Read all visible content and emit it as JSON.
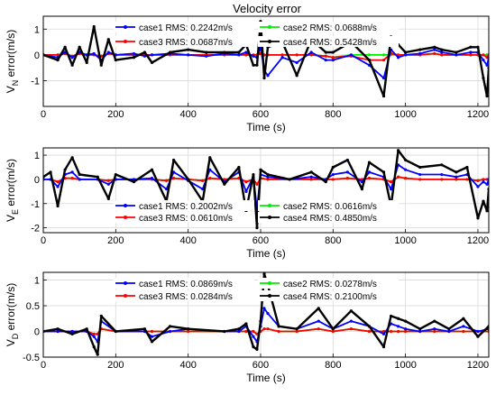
{
  "figure": {
    "title": "Velocity error"
  },
  "colors": {
    "case1": "#0000ff",
    "case2": "#00ee00",
    "case3": "#ff0000",
    "case4": "#000000",
    "grid": "#d9d9d9"
  },
  "chart_data": [
    {
      "type": "line",
      "title": "Velocity error",
      "xlabel": "Time (s)",
      "ylabel": "V_N error(m/s)",
      "ylabel_main": "V",
      "ylabel_sub": "N",
      "ylabel_rest": " error(m/s)",
      "xlim": [
        0,
        1230
      ],
      "ylim": [
        -2,
        1.5
      ],
      "xticks": [
        "0",
        "200",
        "400",
        "600",
        "800",
        "1000",
        "1200"
      ],
      "yticks": [
        "-1",
        "0",
        "1"
      ],
      "ytick_values": [
        -1,
        0,
        1
      ],
      "grid": true,
      "legend": "top, two columns",
      "legend_entries": [
        "case1 RMS: 0.2242m/s",
        "case2 RMS: 0.0688m/s",
        "case3 RMS: 0.0687m/s",
        "case4 RMS: 0.5428m/s"
      ],
      "x": [
        0,
        40,
        60,
        80,
        100,
        120,
        140,
        160,
        180,
        200,
        250,
        280,
        300,
        350,
        400,
        450,
        500,
        540,
        560,
        580,
        590,
        600,
        610,
        620,
        660,
        700,
        740,
        780,
        800,
        850,
        900,
        940,
        960,
        980,
        1000,
        1040,
        1080,
        1100,
        1140,
        1180,
        1200,
        1215,
        1225,
        1230
      ],
      "series": [
        {
          "name": "case1",
          "values": [
            0,
            -0.1,
            0.1,
            -0.1,
            0.1,
            0,
            0.05,
            -0.2,
            0.1,
            0,
            0.05,
            -0.05,
            0,
            0.05,
            0,
            -0.05,
            0.05,
            0,
            0.1,
            -0.05,
            -0.1,
            0.3,
            -0.6,
            -0.8,
            -0.1,
            -0.3,
            0.1,
            -0.2,
            -0.2,
            0,
            -0.4,
            -0.9,
            0.2,
            -0.1,
            0,
            0.05,
            0.2,
            0.1,
            0,
            0.1,
            0.1,
            -0.2,
            -0.4,
            -0.1
          ]
        },
        {
          "name": "case2",
          "values": [
            0,
            0,
            0.05,
            -0.05,
            0.05,
            0,
            0,
            -0.05,
            0.05,
            0,
            0,
            0,
            0,
            0,
            0,
            0,
            0,
            0,
            0,
            0,
            0,
            0.05,
            0,
            0,
            0,
            0,
            0,
            -0.05,
            -0.1,
            0,
            0,
            0,
            0,
            0,
            0,
            0,
            0.05,
            0,
            0,
            0,
            0,
            0,
            0,
            0
          ]
        },
        {
          "name": "case3",
          "values": [
            0,
            0,
            0.05,
            -0.05,
            0.05,
            0,
            0,
            -0.05,
            0.05,
            0,
            0,
            0,
            0,
            0,
            0,
            0,
            0,
            0,
            0,
            0,
            0,
            0.05,
            0,
            0,
            0,
            0,
            0,
            -0.05,
            -0.1,
            -0.05,
            -0.2,
            -0.2,
            0.05,
            0,
            0,
            0,
            0.05,
            0,
            0,
            0,
            0,
            0,
            -0.1,
            0
          ]
        },
        {
          "name": "case4",
          "values": [
            0,
            -0.2,
            0.3,
            -0.4,
            0.3,
            -0.3,
            1.1,
            -0.4,
            0.6,
            -0.2,
            -0.1,
            0.1,
            -0.3,
            0.1,
            0.2,
            0.1,
            0.1,
            0.1,
            0.4,
            -0.4,
            -0.4,
            1.3,
            -0.9,
            0.3,
            0.5,
            -0.8,
            0.6,
            0.1,
            0.1,
            0.5,
            -0.2,
            -1.6,
            0.7,
            0.4,
            0.1,
            0.2,
            0.3,
            0.2,
            0.1,
            0.3,
            0.3,
            -0.9,
            -1.6,
            -0.5
          ]
        }
      ]
    },
    {
      "type": "line",
      "xlabel": "Time (s)",
      "ylabel": "V_E error(m/s)",
      "ylabel_main": "V",
      "ylabel_sub": "E",
      "ylabel_rest": " error(m/s)",
      "xlim": [
        0,
        1230
      ],
      "ylim": [
        -2.2,
        1.3
      ],
      "xticks": [
        "0",
        "200",
        "400",
        "600",
        "800",
        "1000",
        "1200"
      ],
      "yticks": [
        "-2",
        "-1",
        "0",
        "1"
      ],
      "ytick_values": [
        -2,
        -1,
        0,
        1
      ],
      "grid": true,
      "legend": "bottom, two columns",
      "legend_entries": [
        "case1 RMS: 0.2002m/s",
        "case2 RMS: 0.0616m/s",
        "case3 RMS: 0.0610m/s",
        "case4 RMS: 0.4850m/s"
      ],
      "x": [
        0,
        20,
        40,
        60,
        80,
        100,
        150,
        180,
        200,
        250,
        300,
        340,
        360,
        400,
        440,
        460,
        500,
        540,
        560,
        580,
        590,
        600,
        620,
        680,
        740,
        780,
        800,
        840,
        880,
        900,
        940,
        960,
        980,
        1000,
        1040,
        1100,
        1140,
        1170,
        1200,
        1215,
        1225,
        1230
      ],
      "series": [
        {
          "name": "case1",
          "values": [
            0,
            0,
            -0.3,
            0.2,
            0.3,
            0,
            0,
            -0.2,
            0,
            0,
            0.05,
            -0.4,
            0.3,
            -0.05,
            -0.4,
            0.4,
            -0.1,
            0.3,
            -0.5,
            0.1,
            -1.2,
            0.2,
            0.1,
            0,
            0.1,
            0,
            0.2,
            0.3,
            -0.1,
            0.3,
            0.1,
            -0.4,
            0.6,
            0.4,
            0.2,
            0.2,
            0.1,
            0.2,
            -0.3,
            -0.1,
            -0.2,
            0
          ]
        },
        {
          "name": "case2",
          "values": [
            0,
            0,
            -0.1,
            0.05,
            0.05,
            0,
            0,
            -0.05,
            0,
            0,
            0,
            -0.05,
            0.05,
            0,
            -0.05,
            0.05,
            0,
            0.05,
            -0.1,
            0,
            -0.2,
            0.05,
            0,
            0,
            0,
            0,
            0,
            0.05,
            0,
            0.05,
            0,
            -0.1,
            0.1,
            0.05,
            0,
            0,
            0,
            0,
            -0.05,
            0,
            0,
            0
          ]
        },
        {
          "name": "case3",
          "values": [
            0,
            0,
            -0.1,
            0.05,
            0.05,
            0,
            0,
            -0.05,
            0,
            0,
            0,
            -0.05,
            0.05,
            0,
            -0.05,
            0.05,
            0,
            0.05,
            -0.1,
            0,
            -0.2,
            0.05,
            0,
            0,
            0,
            0,
            0,
            0.05,
            0,
            0.05,
            0,
            -0.1,
            0.1,
            0.05,
            0,
            0,
            0,
            0,
            -0.05,
            0,
            0,
            0
          ]
        },
        {
          "name": "case4",
          "values": [
            0.1,
            0.3,
            -1.1,
            0.4,
            0.9,
            0.2,
            0.1,
            -0.8,
            0.2,
            -0.1,
            0.4,
            -0.9,
            0.8,
            0,
            -0.9,
            0.9,
            -0.2,
            0.5,
            -1.3,
            0.2,
            -2.0,
            0.4,
            0.2,
            0,
            0.3,
            -0.1,
            0.5,
            0.8,
            -0.4,
            0.7,
            0.3,
            -1.1,
            1.2,
            0.8,
            0.5,
            0.6,
            0.3,
            0.5,
            -1.6,
            -0.9,
            -1.3,
            -0.4
          ]
        }
      ]
    },
    {
      "type": "line",
      "xlabel": "Time (s)",
      "ylabel": "V_D error(m/s)",
      "ylabel_main": "V",
      "ylabel_sub": "D",
      "ylabel_rest": " error(m/s)",
      "xlim": [
        0,
        1230
      ],
      "ylim": [
        -0.5,
        1.15
      ],
      "xticks": [
        "0",
        "200",
        "400",
        "600",
        "800",
        "1000",
        "1200"
      ],
      "yticks": [
        "-0.5",
        "0",
        "0.5",
        "1"
      ],
      "ytick_values": [
        -0.5,
        0,
        0.5,
        1
      ],
      "grid": true,
      "legend": "top, two columns",
      "legend_entries": [
        "case1 RMS: 0.0869m/s",
        "case2 RMS: 0.0278m/s",
        "case3 RMS: 0.0284m/s",
        "case4 RMS: 0.2100m/s"
      ],
      "x": [
        0,
        40,
        80,
        120,
        140,
        150,
        160,
        200,
        280,
        300,
        350,
        400,
        500,
        540,
        560,
        580,
        590,
        600,
        610,
        620,
        650,
        700,
        760,
        800,
        850,
        900,
        940,
        960,
        980,
        1000,
        1040,
        1080,
        1120,
        1160,
        1200,
        1230
      ],
      "series": [
        {
          "name": "case1",
          "values": [
            0,
            0,
            0,
            0,
            -0.1,
            -0.2,
            0.2,
            0,
            0,
            -0.1,
            0,
            0.05,
            0,
            0,
            0.1,
            -0.1,
            -0.2,
            0.1,
            0.45,
            0.35,
            0.1,
            0.05,
            0.2,
            0.05,
            0.2,
            0.1,
            -0.05,
            0.15,
            0.1,
            0.05,
            0,
            0.05,
            0,
            0.1,
            0,
            0.05
          ]
        },
        {
          "name": "case2",
          "values": [
            0,
            0,
            0,
            0,
            -0.05,
            -0.05,
            0.05,
            0,
            0,
            0,
            0,
            0,
            0,
            0,
            0,
            0,
            -0.05,
            0,
            0.05,
            0.05,
            0,
            0,
            0.05,
            0,
            0.05,
            0,
            0,
            0,
            0,
            0,
            0,
            0,
            0,
            0,
            0,
            0
          ]
        },
        {
          "name": "case3",
          "values": [
            0,
            0,
            0,
            0,
            -0.05,
            -0.05,
            0.05,
            0,
            0,
            0,
            0,
            0,
            0,
            0,
            0,
            0,
            -0.05,
            0,
            0.05,
            0.05,
            0,
            0,
            0.05,
            0,
            0.05,
            0,
            0,
            0,
            0,
            0,
            0,
            0,
            0,
            0,
            0,
            0
          ]
        },
        {
          "name": "case4",
          "values": [
            0,
            0.05,
            -0.05,
            0.05,
            -0.3,
            -0.45,
            0.3,
            0,
            0.05,
            -0.2,
            0.1,
            0.05,
            0,
            0.05,
            0.15,
            -0.3,
            -0.35,
            0.2,
            1.12,
            0.9,
            0.1,
            0.05,
            0.45,
            0.05,
            0.4,
            0.1,
            -0.3,
            0.3,
            0.25,
            0.2,
            0.05,
            0.2,
            0.05,
            0.25,
            -0.1,
            0.1
          ]
        }
      ]
    }
  ]
}
